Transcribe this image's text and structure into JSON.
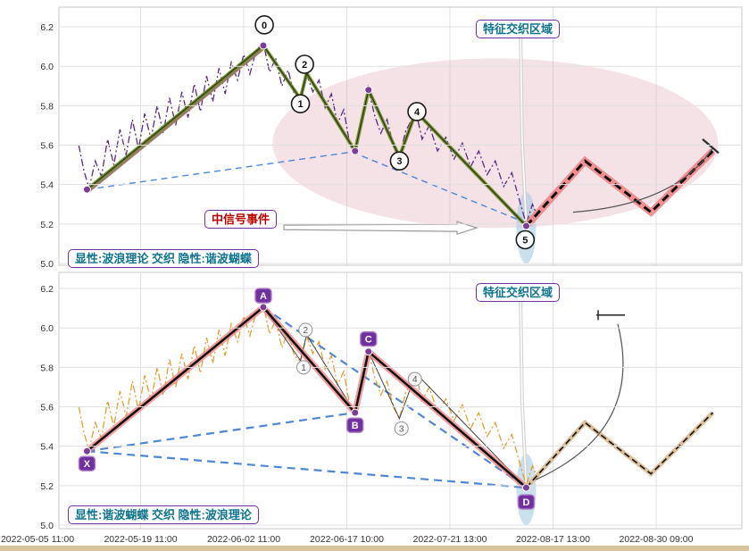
{
  "chart_data": {
    "type": "line",
    "title": "",
    "x_axis": {
      "tick_labels": [
        "2022-05-05 11:00",
        "2022-05-19 11:00",
        "2022-06-02 11:00",
        "2022-06-17 10:00",
        "2022-07-21 13:00",
        "2022-08-17 13:00",
        "2022-08-30 09:00"
      ]
    },
    "y_axis": {
      "ticks": [
        5.0,
        5.2,
        5.4,
        5.6,
        5.8,
        6.0,
        6.2
      ],
      "range": [
        5.0,
        6.3
      ]
    },
    "price": [
      [
        0.4,
        5.6
      ],
      [
        0.45,
        5.47
      ],
      [
        0.5,
        5.38
      ],
      [
        0.56,
        5.52
      ],
      [
        0.62,
        5.44
      ],
      [
        0.68,
        5.63
      ],
      [
        0.74,
        5.5
      ],
      [
        0.8,
        5.68
      ],
      [
        0.86,
        5.55
      ],
      [
        0.92,
        5.73
      ],
      [
        0.98,
        5.58
      ],
      [
        1.04,
        5.76
      ],
      [
        1.1,
        5.63
      ],
      [
        1.16,
        5.8
      ],
      [
        1.22,
        5.66
      ],
      [
        1.28,
        5.84
      ],
      [
        1.34,
        5.7
      ],
      [
        1.4,
        5.87
      ],
      [
        1.46,
        5.74
      ],
      [
        1.52,
        5.91
      ],
      [
        1.58,
        5.77
      ],
      [
        1.64,
        5.95
      ],
      [
        1.7,
        5.82
      ],
      [
        1.76,
        5.99
      ],
      [
        1.82,
        5.86
      ],
      [
        1.88,
        6.02
      ],
      [
        1.94,
        5.93
      ],
      [
        2.0,
        6.06
      ],
      [
        2.06,
        5.96
      ],
      [
        2.12,
        6.08
      ],
      [
        2.19,
        6.12
      ],
      [
        2.25,
        5.97
      ],
      [
        2.31,
        6.04
      ],
      [
        2.37,
        5.9
      ],
      [
        2.43,
        5.98
      ],
      [
        2.49,
        5.86
      ],
      [
        2.55,
        5.83
      ],
      [
        2.61,
        5.96
      ],
      [
        2.67,
        5.87
      ],
      [
        2.73,
        5.93
      ],
      [
        2.79,
        5.79
      ],
      [
        2.85,
        5.86
      ],
      [
        2.91,
        5.71
      ],
      [
        2.97,
        5.78
      ],
      [
        3.03,
        5.6
      ],
      [
        3.08,
        5.57
      ],
      [
        3.14,
        5.72
      ],
      [
        3.21,
        5.88
      ],
      [
        3.27,
        5.75
      ],
      [
        3.33,
        5.66
      ],
      [
        3.39,
        5.73
      ],
      [
        3.45,
        5.6
      ],
      [
        3.51,
        5.54
      ],
      [
        3.57,
        5.67
      ],
      [
        3.63,
        5.73
      ],
      [
        3.67,
        5.77
      ],
      [
        3.73,
        5.63
      ],
      [
        3.8,
        5.7
      ],
      [
        3.88,
        5.57
      ],
      [
        3.96,
        5.64
      ],
      [
        4.04,
        5.53
      ],
      [
        4.12,
        5.61
      ],
      [
        4.2,
        5.49
      ],
      [
        4.28,
        5.57
      ],
      [
        4.36,
        5.45
      ],
      [
        4.44,
        5.52
      ],
      [
        4.52,
        5.39
      ],
      [
        4.6,
        5.46
      ],
      [
        4.68,
        5.31
      ],
      [
        4.74,
        5.2
      ],
      [
        4.8,
        5.3
      ],
      [
        4.85,
        5.24
      ]
    ],
    "pivots": {
      "X": [
        0.48,
        5.375
      ],
      "A": [
        2.19,
        6.105
      ],
      "B": [
        3.08,
        5.57
      ],
      "C": [
        3.21,
        5.88
      ],
      "D": [
        4.74,
        5.19
      ]
    },
    "elliott_path": [
      [
        0.48,
        5.375
      ],
      [
        2.19,
        6.105
      ],
      [
        2.55,
        5.835
      ],
      [
        2.61,
        5.965
      ],
      [
        3.08,
        5.57
      ],
      [
        3.21,
        5.88
      ],
      [
        3.51,
        5.54
      ],
      [
        3.67,
        5.77
      ],
      [
        4.74,
        5.19
      ]
    ],
    "forecast": [
      [
        4.74,
        5.19
      ],
      [
        5.31,
        5.52
      ],
      [
        5.95,
        5.26
      ],
      [
        6.55,
        5.57
      ]
    ],
    "panels": [
      {
        "id": "top",
        "legend": "显性:波浪理论 交织 隐性:谐波蝴蝶",
        "region_label": "特征交织区域",
        "signal_label": "中信号事件",
        "wave_labels": [
          {
            "t": "0",
            "x": 2.2,
            "p": 6.21
          },
          {
            "t": "2",
            "x": 2.59,
            "p": 6.01
          },
          {
            "t": "1",
            "x": 2.55,
            "p": 5.81
          },
          {
            "t": "3",
            "x": 3.51,
            "p": 5.52
          },
          {
            "t": "4",
            "x": 3.68,
            "p": 5.77
          },
          {
            "t": "5",
            "x": 4.73,
            "p": 5.12
          }
        ]
      },
      {
        "id": "bottom",
        "legend": "显性:谐波蝴蝶 交织 隐性:波浪理论",
        "region_label": "特征交织区域",
        "harmonic_points": [
          "X",
          "A",
          "B",
          "C",
          "D"
        ],
        "wave_labels": [
          {
            "t": "2",
            "x": 2.6,
            "p": 5.99
          },
          {
            "t": "1",
            "x": 2.58,
            "p": 5.8
          },
          {
            "t": "3",
            "x": 3.53,
            "p": 5.49
          },
          {
            "t": "4",
            "x": 3.66,
            "p": 5.74
          }
        ]
      }
    ],
    "colors": {
      "grid": "#e0e0e0",
      "frame": "#c9c9c9",
      "purple_line": "#5b2a86",
      "orange_line": "#e29f30",
      "olive": "#6b8e23",
      "salmon": "#f07f7f",
      "tan": "#d9b98c",
      "blue_dash": "#4f86d8",
      "marker": "#7d3c98",
      "marker_box": "#7030a0",
      "ellipse_pink": "#dfa8b6",
      "ellipse_blue": "#9fc6de",
      "teal_text": "#0e7490",
      "red_text": "#c00000",
      "purple_border": "#7030a0",
      "footer": "#d8c49c"
    }
  }
}
